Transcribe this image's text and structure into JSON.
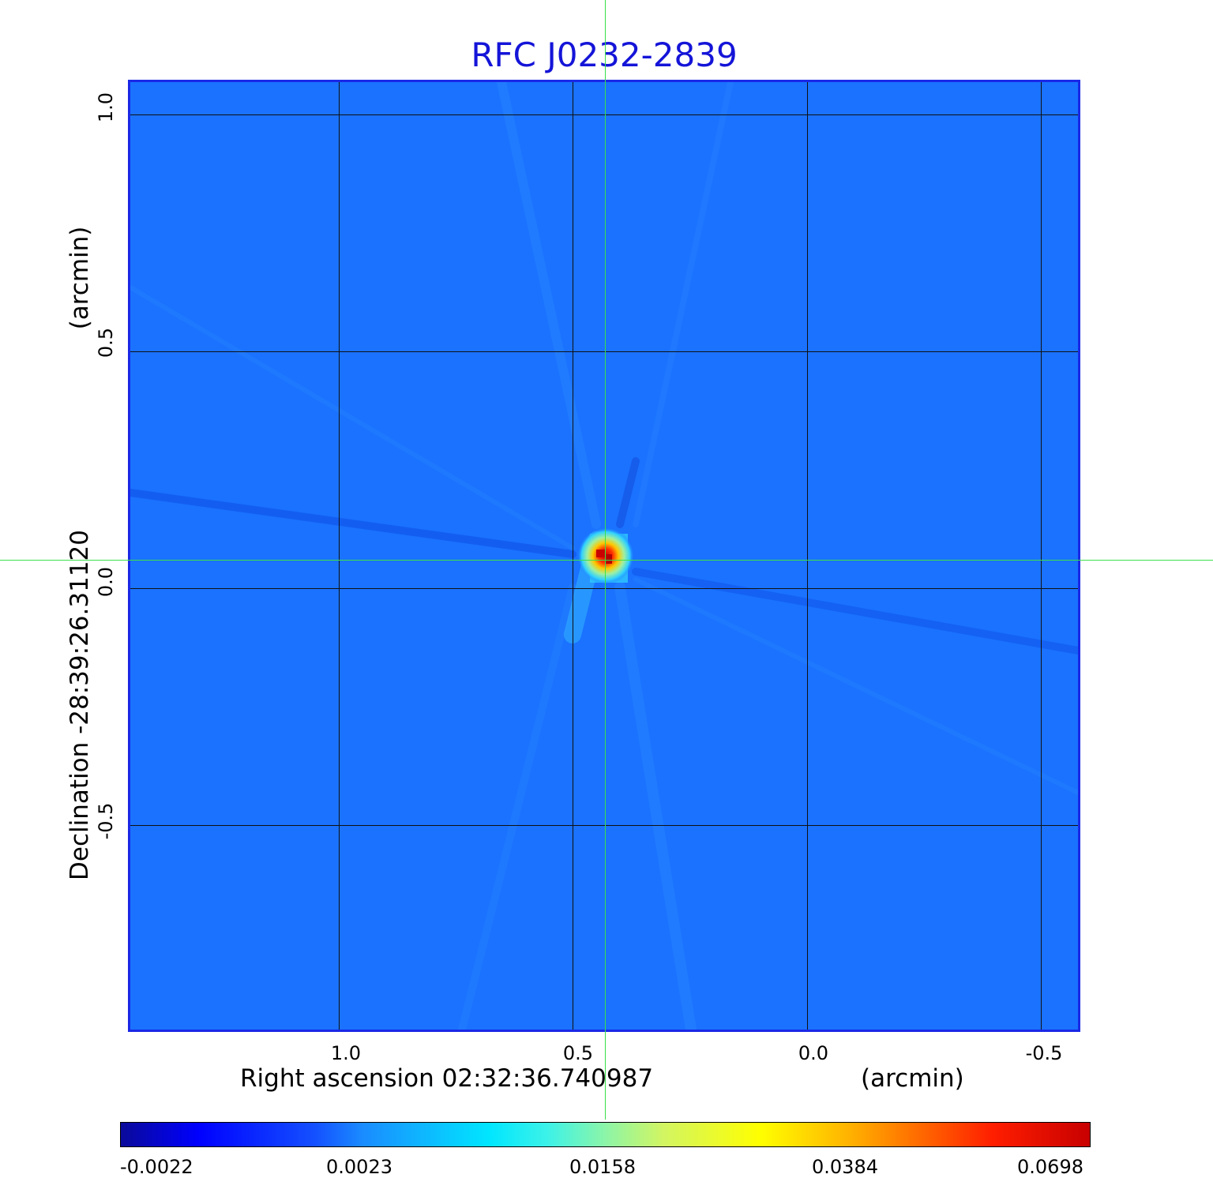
{
  "title": "RFC J0232-2839",
  "x_axis": {
    "label": "Right ascension  02:32:36.740987",
    "unit": "(arcmin)",
    "ticks": [
      "1.0",
      "0.5",
      "0.0",
      "-0.5"
    ]
  },
  "y_axis": {
    "label": "Declination  -28:39:26.31120",
    "unit": "(arcmin)",
    "ticks": [
      "1.0",
      "0.5",
      "0.0",
      "-0.5"
    ]
  },
  "colorbar": {
    "ticks": [
      "-0.0022",
      "0.0023",
      "0.0158",
      "0.0384",
      "0.0698"
    ]
  },
  "colors": {
    "title": "#1414d8",
    "background_map": "#1a72ff",
    "crosshair": "#3be04a"
  }
}
